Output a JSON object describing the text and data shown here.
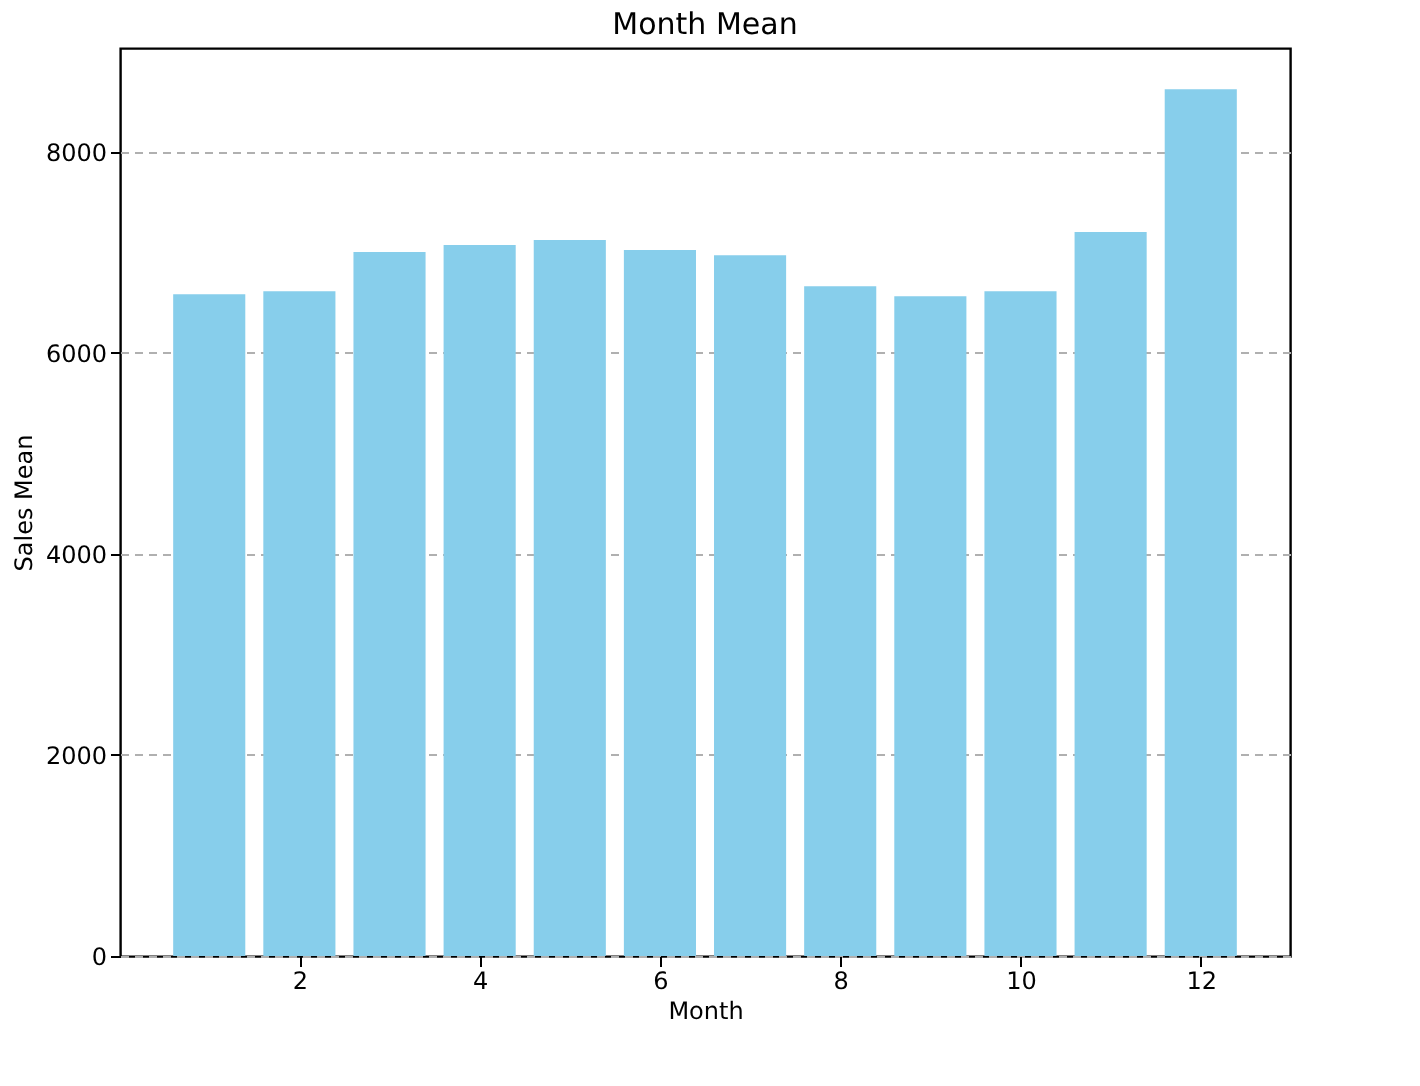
{
  "chart_data": {
    "type": "bar",
    "title": "Month Mean",
    "xlabel": "Month",
    "ylabel": "Sales Mean",
    "x": [
      1,
      2,
      3,
      4,
      5,
      6,
      7,
      8,
      9,
      10,
      11,
      12
    ],
    "values": [
      6580,
      6610,
      7000,
      7070,
      7120,
      7020,
      6970,
      6660,
      6560,
      6610,
      7200,
      8620
    ],
    "color": "#87ceeb",
    "xlim": [
      0.01,
      12.99
    ],
    "xticks": [
      2,
      4,
      6,
      8,
      10,
      12
    ],
    "ylim": [
      0,
      9030
    ],
    "yticks": [
      0,
      2000,
      4000,
      6000,
      8000
    ],
    "grid": "y"
  }
}
